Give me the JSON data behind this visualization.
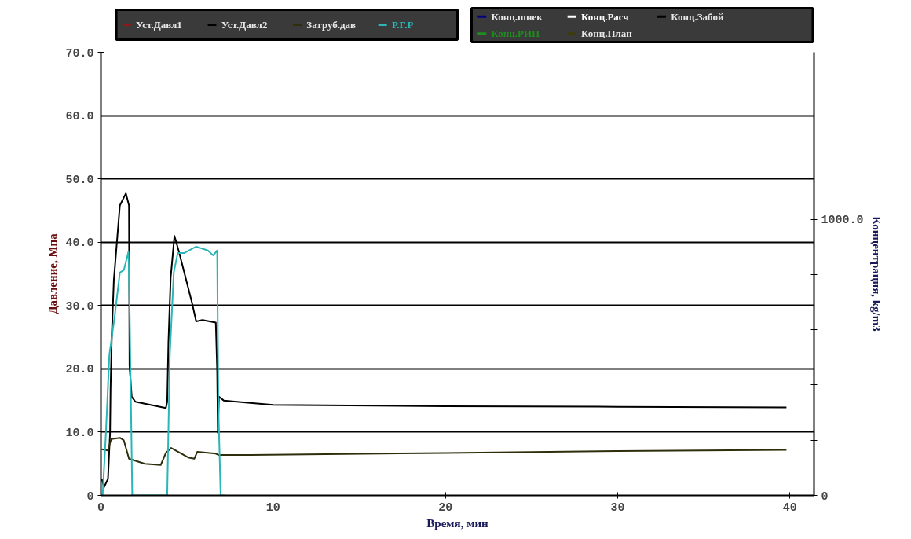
{
  "chart_data": {
    "type": "line",
    "xlabel": "Время, мин",
    "ylabel": "Давление, Мпа",
    "y2label": "Концентрация, kg/m3",
    "xlim": [
      0,
      41.4
    ],
    "xticks": [
      0,
      10,
      20,
      30,
      40
    ],
    "ylim": [
      0,
      70
    ],
    "yticks": [
      0,
      {
        "value": 10,
        "label": "10.0"
      },
      {
        "value": 20,
        "label": "20.0"
      },
      {
        "value": 30,
        "label": "30.0"
      },
      {
        "value": 40,
        "label": "40.0"
      },
      {
        "value": 50,
        "label": "50.0"
      },
      {
        "value": 60,
        "label": "60.0"
      },
      {
        "value": 70,
        "label": "70.0"
      }
    ],
    "y2lim": [
      0,
      1605
    ],
    "y2ticks": [
      0,
      {
        "value": 200,
        "label": null
      },
      {
        "value": 400,
        "label": null
      },
      {
        "value": 600,
        "label": null
      },
      {
        "value": 800,
        "label": null
      },
      {
        "value": 1000,
        "label": "1000.0"
      }
    ],
    "grid": "y",
    "legend": "top",
    "series": [
      {
        "name": "Уст.Давл1",
        "color": "#8b1a1a"
      },
      {
        "name": "Уст.Давл2",
        "color": "#000000",
        "x": [
          0.05,
          0.18,
          0.41,
          0.53,
          0.56,
          0.64,
          0.75,
          1.1,
          1.45,
          1.63,
          1.66,
          1.79,
          2.0,
          3.77,
          3.85,
          3.92,
          4.05,
          4.27,
          4.53,
          5.3,
          5.53,
          5.9,
          6.67,
          6.75,
          6.79,
          6.85,
          7.13,
          8.66,
          10,
          20,
          30,
          39.8
        ],
        "values": [
          2.6,
          1.3,
          2.6,
          9.9,
          16.9,
          26,
          34,
          45.8,
          47.7,
          45.8,
          20.5,
          15.6,
          14.8,
          13.8,
          14.8,
          24.2,
          34.4,
          41,
          38.5,
          30.3,
          27.5,
          27.7,
          27.3,
          19.7,
          9.9,
          15.6,
          15,
          14.6,
          14.3,
          14.1,
          14.0,
          13.9
        ]
      },
      {
        "name": "Затруб.дав",
        "color": "#2e2e0c",
        "x": [
          0.05,
          0.4,
          0.6,
          1.1,
          1.33,
          1.63,
          2.55,
          3.47,
          3.77,
          4.08,
          5.07,
          5.42,
          5.6,
          6.67,
          6.82,
          8.66,
          20,
          30,
          39.8
        ],
        "values": [
          7.3,
          7.1,
          8.9,
          9.1,
          8.7,
          5.8,
          5.0,
          4.8,
          6.7,
          7.5,
          6.0,
          5.8,
          6.9,
          6.6,
          6.4,
          6.4,
          6.7,
          7.0,
          7.2
        ]
      },
      {
        "name": "Р.Г.Р",
        "color": "#2bb5b5",
        "x": [
          0.1,
          0.29,
          0.49,
          0.8,
          1.1,
          1.33,
          1.6,
          1.66,
          1.82,
          3.85,
          4.0,
          4.23,
          4.46,
          4.84,
          5.53,
          6.21,
          6.52,
          6.75,
          6.82,
          6.95,
          7.2
        ],
        "values": [
          0,
          9.9,
          22.2,
          28.3,
          35.2,
          35.6,
          38.5,
          30.3,
          0,
          0,
          22.2,
          35.2,
          38.3,
          38.3,
          39.3,
          38.7,
          37.9,
          38.7,
          14,
          0,
          0
        ]
      },
      {
        "name": "Конц.шнек",
        "color": "#000080",
        "axis": "y2"
      },
      {
        "name": "Конц.Расч",
        "color": "#ffffff",
        "axis": "y2"
      },
      {
        "name": "Конц.Забой",
        "color": "#000000",
        "axis": "y2"
      },
      {
        "name": "Конц.РИП",
        "color": "#1e8c1e",
        "axis": "y2"
      },
      {
        "name": "Конц.План",
        "color": "#3c3c0a",
        "axis": "y2"
      }
    ]
  }
}
